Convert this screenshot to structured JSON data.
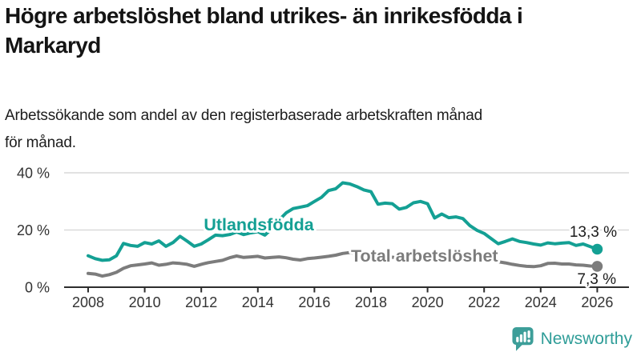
{
  "header": {
    "title_lines": [
      "Högre arbetslöshet bland utrikes- än inrikesfödda i",
      "Markaryd"
    ],
    "subtitle_lines": [
      "Arbetssökande som andel av den registerbaserade arbetskraften månad",
      "för månad."
    ]
  },
  "footer": {
    "brand": "Newsworthy",
    "brand_color": "#2f9d98",
    "icon": "newsworthy-speech-bubble-bar-chart-icon"
  },
  "chart_data": {
    "type": "line",
    "title": "Högre arbetslöshet bland utrikes- än inrikesfödda i Markaryd",
    "subtitle": "Arbetssökande som andel av den registerbaserade arbetskraften månad för månad.",
    "xlabel": "",
    "ylabel": "",
    "x_start": 2008,
    "x_step": 0.25,
    "x_range": [
      2008,
      2026
    ],
    "ylim": [
      0,
      40
    ],
    "x_ticks": [
      2008,
      2010,
      2012,
      2014,
      2016,
      2018,
      2020,
      2022,
      2024,
      2026
    ],
    "y_ticks": [
      {
        "value": 0,
        "label": "0 %"
      },
      {
        "value": 20,
        "label": "20 %"
      },
      {
        "value": 40,
        "label": "40 %"
      }
    ],
    "grid": "horizontal",
    "legend_position": "inline-annotations",
    "series": [
      {
        "name": "Utlandsfödda",
        "color": "#14a094",
        "end_label": "13,3 %",
        "end_value": 13.3,
        "values": [
          11.0,
          10.0,
          9.4,
          9.6,
          11.0,
          15.3,
          14.6,
          14.3,
          15.6,
          15.1,
          16.2,
          14.3,
          15.6,
          17.8,
          16.1,
          14.3,
          15.1,
          16.6,
          18.2,
          18.0,
          18.4,
          19.3,
          18.4,
          19.0,
          19.4,
          18.2,
          20.5,
          23.5,
          26.0,
          27.5,
          28.0,
          28.5,
          30.0,
          31.4,
          33.8,
          34.4,
          36.5,
          36.1,
          35.2,
          34.0,
          33.4,
          29.0,
          29.4,
          29.2,
          27.3,
          27.9,
          29.5,
          30.0,
          29.2,
          24.2,
          25.6,
          24.3,
          24.6,
          24.0,
          21.5,
          19.9,
          18.8,
          17.0,
          15.2,
          16.0,
          16.9,
          16.0,
          15.6,
          15.1,
          14.7,
          15.5,
          15.2,
          15.4,
          15.6,
          14.6,
          15.1,
          14.2,
          13.3
        ]
      },
      {
        "name": "Total arbetslöshet",
        "color": "#7c7c7c",
        "end_label": "7,3 %",
        "end_value": 7.3,
        "values": [
          4.8,
          4.6,
          3.9,
          4.4,
          5.2,
          6.6,
          7.5,
          7.8,
          8.1,
          8.5,
          7.7,
          8.0,
          8.5,
          8.3,
          8.0,
          7.3,
          8.0,
          8.6,
          9.0,
          9.4,
          10.3,
          10.9,
          10.4,
          10.6,
          10.8,
          10.2,
          10.4,
          10.6,
          10.3,
          9.8,
          9.5,
          10.0,
          10.2,
          10.5,
          10.8,
          11.2,
          11.8,
          12.1,
          11.7,
          11.3,
          11.0,
          10.6,
          10.3,
          10.5,
          10.2,
          9.7,
          9.9,
          10.0,
          9.9,
          10.5,
          10.2,
          9.7,
          9.5,
          9.6,
          9.3,
          9.4,
          9.6,
          9.4,
          8.9,
          8.5,
          8.0,
          7.6,
          7.3,
          7.2,
          7.5,
          8.3,
          8.4,
          8.1,
          8.1,
          7.8,
          7.7,
          7.4,
          7.3
        ]
      }
    ]
  }
}
